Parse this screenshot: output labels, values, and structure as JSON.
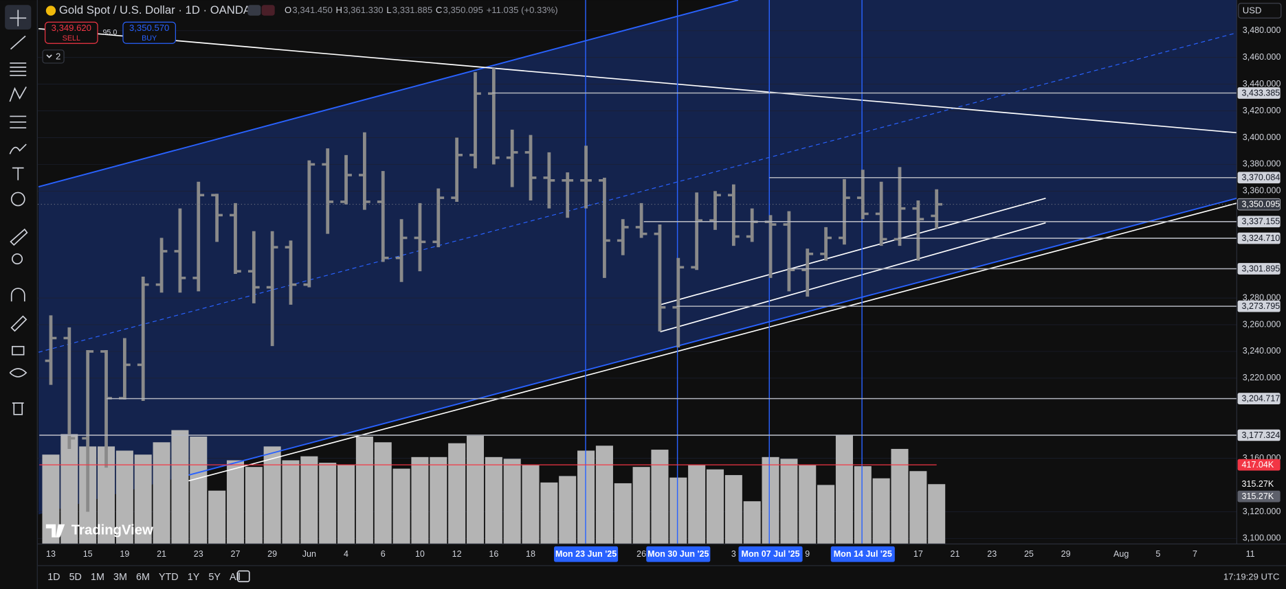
{
  "header": {
    "symbol": "Gold Spot / U.S. Dollar · 1D · OANDA",
    "ohlc": [
      {
        "key": "O",
        "value": "3,341.450"
      },
      {
        "key": "H",
        "value": "3,361.330"
      },
      {
        "key": "L",
        "value": "3,331.885"
      },
      {
        "key": "C",
        "value": "3,350.095"
      }
    ],
    "change": "+11.035 (+0.33%)"
  },
  "trade": {
    "sell_price": "3,349.620",
    "sell": "SELL",
    "spread": "95.0",
    "buy_price": "3,350.570",
    "buy": "BUY",
    "indicators": "2"
  },
  "currency": "USD",
  "watermark": "TradingView",
  "timeframes": [
    "1D",
    "5D",
    "1M",
    "3M",
    "6M",
    "YTD",
    "1Y",
    "5Y",
    "All"
  ],
  "clock": "17:19:29 UTC",
  "chart_data": {
    "type": "ohlc",
    "categories": [
      "13",
      null,
      "15",
      null,
      "19",
      null,
      "21",
      null,
      "23",
      null,
      "27",
      null,
      "29",
      null,
      "Jun",
      null,
      "4",
      null,
      "6",
      null,
      "10",
      null,
      "12",
      null,
      "16",
      null,
      "18",
      null,
      null,
      "Mon 23 Jun '25",
      null,
      null,
      "26",
      null,
      "Mon 30 Jun '25",
      null,
      null,
      "3",
      null,
      "Mon 07 Jul '25",
      null,
      "9",
      null,
      null,
      "Mon 14 Jul '25",
      null,
      null,
      "17",
      null,
      "21",
      null,
      "23",
      null,
      "25",
      null,
      "29",
      null,
      null,
      "Aug",
      null,
      "5",
      null,
      "7",
      null,
      null,
      "11"
    ],
    "open": [
      3233,
      3250,
      3175,
      3240,
      3205,
      3230,
      3290,
      3315,
      3295,
      3357,
      3342,
      3300,
      3288,
      3318,
      3290,
      3380,
      3352,
      3372,
      3352,
      3310,
      3325,
      3322,
      3355,
      3387,
      3433,
      3385,
      3389,
      3370,
      3368,
      3368,
      3368,
      3323,
      3333,
      3328,
      3273,
      3303,
      3338,
      3357,
      3326,
      3337,
      3335,
      3301,
      3313,
      3325,
      3355,
      3343,
      3324,
      3347,
      3341.45,
      null,
      null,
      null,
      null,
      null,
      null,
      null,
      null,
      null,
      null,
      null,
      null,
      null,
      null,
      null,
      null,
      null
    ],
    "high": [
      3267,
      3258,
      3241,
      3241,
      3250,
      3296,
      3325,
      3347,
      3367,
      3358,
      3351,
      3330,
      3330,
      3323,
      3383,
      3392,
      3387,
      3404,
      3375,
      3339,
      3351,
      3362,
      3400,
      3449,
      3452,
      3406,
      3402,
      3389,
      3374,
      3394,
      3370,
      3339,
      3351,
      3335,
      3310,
      3359,
      3360,
      3365,
      3347,
      3342,
      3345,
      3317,
      3333,
      3369,
      3376,
      3367,
      3378,
      3353,
      3361.33,
      null,
      null,
      null,
      null,
      null,
      null,
      null,
      null,
      null,
      null,
      null,
      null,
      null,
      null,
      null,
      null,
      null
    ],
    "low": [
      3215,
      3167,
      3120,
      3153,
      3204,
      3203,
      3284,
      3284,
      3285,
      3322,
      3298,
      3276,
      3244,
      3275,
      3288,
      3328,
      3350,
      3346,
      3307,
      3292,
      3300,
      3318,
      3352,
      3377,
      3380,
      3363,
      3353,
      3347,
      3340,
      3347,
      3295,
      3312,
      3325,
      3255,
      3243,
      3301,
      3331,
      3319,
      3322,
      3295,
      3285,
      3281,
      3308,
      3320,
      3339,
      3319,
      3319,
      3308,
      3331.885,
      null,
      null,
      null,
      null,
      null,
      null,
      null,
      null,
      null,
      null,
      null,
      null,
      null,
      null,
      null,
      null,
      null
    ],
    "close": [
      3250,
      3175,
      3240,
      3205,
      3230,
      3290,
      3315,
      3295,
      3357,
      3342,
      3300,
      3288,
      3318,
      3290,
      3380,
      3352,
      3372,
      3352,
      3310,
      3325,
      3322,
      3355,
      3387,
      3433,
      3385,
      3389,
      3370,
      3368,
      3368,
      3368,
      3323,
      3333,
      3328,
      3273,
      3303,
      3338,
      3357,
      3326,
      3337,
      3335,
      3301,
      3313,
      3325,
      3355,
      3343,
      3324,
      3347,
      3339,
      3350.095,
      null,
      null,
      null,
      null,
      null,
      null,
      null,
      null,
      null,
      null,
      null,
      null,
      null,
      null,
      null,
      null,
      null
    ],
    "volume": [
      471000,
      579000,
      514000,
      514000,
      492000,
      471000,
      536000,
      600000,
      566000,
      281000,
      441000,
      406000,
      514000,
      441000,
      462000,
      428000,
      419000,
      566000,
      536000,
      397000,
      458000,
      458000,
      531000,
      570000,
      458000,
      449000,
      415000,
      324000,
      358000,
      492000,
      518000,
      320000,
      406000,
      497000,
      350000,
      415000,
      393000,
      363000,
      225000,
      458000,
      449000,
      415000,
      311000,
      574000,
      410000,
      346000,
      501000,
      384000,
      315270,
      null,
      null,
      null,
      null,
      null,
      null,
      null,
      null,
      null,
      null,
      null,
      null,
      null,
      null,
      null,
      null,
      null
    ],
    "bar_color": "#8a8a8a",
    "volume_color": "#b4b4b4",
    "ylim": [
      3080,
      3503
    ],
    "yticks": [
      {
        "value": 3100,
        "label": "3,100.000"
      },
      {
        "value": 3120,
        "label": "3,120.000"
      },
      {
        "value": 3160,
        "label": "3,160.000"
      },
      {
        "value": 3220,
        "label": "3,220.000"
      },
      {
        "value": 3240,
        "label": "3,240.000"
      },
      {
        "value": 3260,
        "label": "3,260.000"
      },
      {
        "value": 3280,
        "label": "3,280.000"
      },
      {
        "value": 3360,
        "label": "3,360.000"
      },
      {
        "value": 3380,
        "label": "3,380.000"
      },
      {
        "value": 3400,
        "label": "3,400.000"
      },
      {
        "value": 3420,
        "label": "3,420.000"
      },
      {
        "value": 3440,
        "label": "3,440.000"
      },
      {
        "value": 3460,
        "label": "3,460.000"
      },
      {
        "value": 3480,
        "label": "3,480.000"
      }
    ],
    "vlim": [
      0,
      2868000
    ],
    "price_levels": [
      {
        "value": 3433.385,
        "label": "3,433.385"
      },
      {
        "value": 3370.084,
        "label": "3,370.084"
      },
      {
        "value": 3337.155,
        "label": "3,337.155"
      },
      {
        "value": 3324.71,
        "label": "3,324.710"
      },
      {
        "value": 3301.895,
        "label": "3,301.895"
      },
      {
        "value": 3273.795,
        "label": "3,273.795"
      },
      {
        "value": 3204.717,
        "label": "3,204.717"
      },
      {
        "value": 3177.324,
        "label": "3,177.324"
      }
    ],
    "last_price": {
      "value": 3350.095,
      "label": "3,350.095"
    },
    "volume_markers": [
      {
        "value": 417040,
        "label": "417.04K",
        "color": "#f23645"
      },
      {
        "value": 315270,
        "label": "315.27K",
        "color": "#0f0f0f"
      },
      {
        "value": 315270,
        "label": "315.27K",
        "color": "#5d606b"
      }
    ]
  }
}
